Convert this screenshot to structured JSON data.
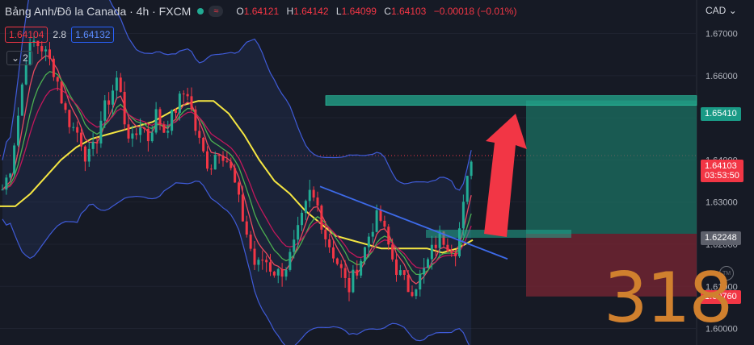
{
  "header": {
    "symbol_title": "Bảng Anh/Đô la Canada · 4h · FXCM",
    "open_label": "O",
    "open": "1.64121",
    "high_label": "H",
    "high": "1.64142",
    "low_label": "L",
    "low": "1.64099",
    "close_label": "C",
    "close": "1.64103",
    "change": "−0.00018 (−0.01%)",
    "status_color": "#22ab94"
  },
  "trade": {
    "sell_price": "1.64104",
    "spread": "2.8",
    "buy_price": "1.64132"
  },
  "indicators_toggle": {
    "count": "2"
  },
  "currency": "CAD",
  "price_axis": {
    "ticks": [
      "1.67000",
      "1.66000",
      "1.65000",
      "1.64000",
      "1.63000",
      "1.62000",
      "1.61000",
      "1.60000"
    ]
  },
  "tags": {
    "target": "1.65410",
    "last_price": "1.64103",
    "countdown": "03:53:50",
    "entry": "1.62248",
    "stop": "1.60760"
  },
  "watermark": "318",
  "tm_badge": "TM",
  "colors": {
    "up": "#22ab94",
    "down": "#f23645",
    "ma_slow": "#f5e642",
    "ma_fast": "#3d6ae8",
    "band": "#3f5bd8"
  },
  "chart_data": {
    "type": "candlestick",
    "title": "Bảng Anh/Đô la Canada · 4h · FXCM",
    "ylim": [
      1.598,
      1.6745
    ],
    "yticks": [
      1.67,
      1.66,
      1.65,
      1.64,
      1.63,
      1.62,
      1.61,
      1.6
    ],
    "close_path": [
      1.633,
      1.638,
      1.65,
      1.664,
      1.668,
      1.667,
      1.664,
      1.66,
      1.652,
      1.648,
      1.646,
      1.64,
      1.643,
      1.651,
      1.655,
      1.66,
      1.648,
      1.644,
      1.649,
      1.645,
      1.651,
      1.647,
      1.65,
      1.654,
      1.657,
      1.648,
      1.642,
      1.638,
      1.643,
      1.641,
      1.636,
      1.628,
      1.621,
      1.614,
      1.617,
      1.614,
      1.613,
      1.615,
      1.62,
      1.626,
      1.632,
      1.629,
      1.622,
      1.618,
      1.614,
      1.609,
      1.614,
      1.618,
      1.624,
      1.627,
      1.621,
      1.615,
      1.612,
      1.609,
      1.611,
      1.614,
      1.619,
      1.622,
      1.62,
      1.619,
      1.629,
      1.641
    ],
    "ma_slow": [
      1.629,
      1.629,
      1.632,
      1.636,
      1.64,
      1.643,
      1.645,
      1.646,
      1.647,
      1.648,
      1.649,
      1.651,
      1.653,
      1.654,
      1.654,
      1.651,
      1.646,
      1.64,
      1.635,
      1.632,
      1.628,
      1.625,
      1.622,
      1.621,
      1.62,
      1.619,
      1.619,
      1.619,
      1.619,
      1.618,
      1.619,
      1.621
    ],
    "annotations": {
      "target_price": 1.6541,
      "entry_price": 1.62248,
      "stop_price": 1.6076,
      "trendline": [
        [
          1.6337,
          0
        ],
        [
          1.6182,
          1
        ]
      ]
    }
  }
}
